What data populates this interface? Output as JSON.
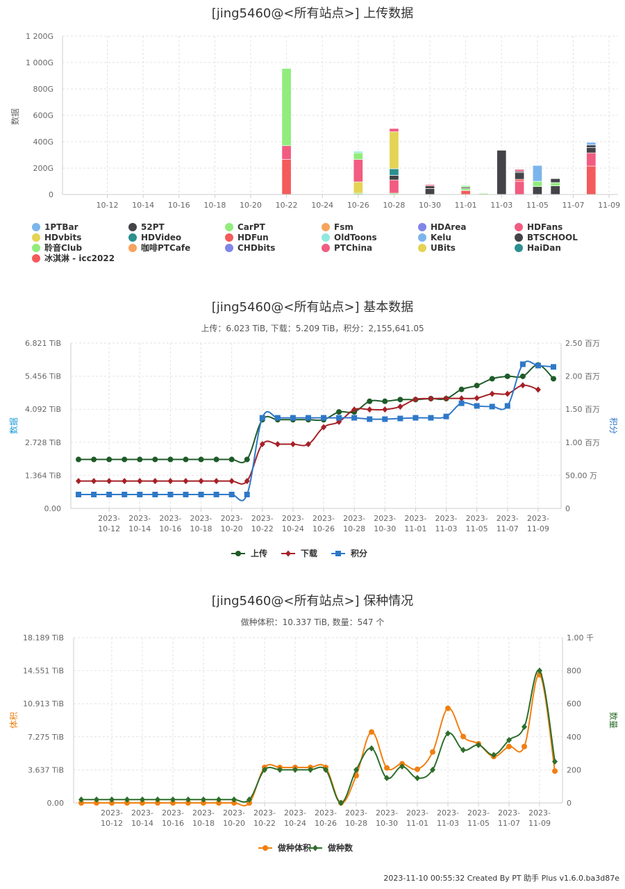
{
  "chart_data": [
    {
      "type": "bar",
      "title": "[jing5460@<所有站点>] 上传数据",
      "ylabel": "数据",
      "ylim": [
        0,
        1200
      ],
      "yticks": [
        "0",
        "200G",
        "400G",
        "600G",
        "800G",
        "1 000G",
        "1 200G"
      ],
      "x_labels": [
        "10-12",
        "10-14",
        "10-16",
        "10-18",
        "10-20",
        "10-22",
        "10-24",
        "10-26",
        "10-28",
        "10-30",
        "11-01",
        "11-03",
        "11-05",
        "11-07",
        "11-09"
      ],
      "stacked": true,
      "legend": [
        {
          "name": "1PTBar",
          "color": "#7cb5ec"
        },
        {
          "name": "52PT",
          "color": "#434348"
        },
        {
          "name": "CarPT",
          "color": "#90ed7d"
        },
        {
          "name": "Fsm",
          "color": "#f7a35c"
        },
        {
          "name": "HDArea",
          "color": "#8085e9"
        },
        {
          "name": "HDFans",
          "color": "#f15c80"
        },
        {
          "name": "HDvbits",
          "color": "#e4d354"
        },
        {
          "name": "HDVideo",
          "color": "#2b908f"
        },
        {
          "name": "HDFun",
          "color": "#f45b5b"
        },
        {
          "name": "OldToons",
          "color": "#91e8e1"
        },
        {
          "name": "Kelu",
          "color": "#7cb5ec"
        },
        {
          "name": "BTSCHOOL",
          "color": "#434348"
        },
        {
          "name": "聆音Club",
          "color": "#90ed7d"
        },
        {
          "name": "咖啡PTCafe",
          "color": "#f7a35c"
        },
        {
          "name": "CHDbits",
          "color": "#8085e9"
        },
        {
          "name": "PTChina",
          "color": "#f15c80"
        },
        {
          "name": "UBits",
          "color": "#e4d354"
        },
        {
          "name": "HaiDan",
          "color": "#2b908f"
        },
        {
          "name": "冰淇淋 - icc2022",
          "color": "#f45b5b"
        }
      ],
      "bars": [
        {
          "date": "10-22",
          "segments": [
            {
              "v": 265,
              "c": "#f45b5b"
            },
            {
              "v": 105,
              "c": "#f15c80"
            },
            {
              "v": 585,
              "c": "#90ed7d"
            }
          ]
        },
        {
          "date": "10-26",
          "segments": [
            {
              "v": 10,
              "c": "#90ed7d"
            },
            {
              "v": 85,
              "c": "#e4d354"
            },
            {
              "v": 170,
              "c": "#f15c80"
            },
            {
              "v": 50,
              "c": "#90ed7d"
            },
            {
              "v": 12,
              "c": "#91e8e1"
            }
          ]
        },
        {
          "date": "10-28",
          "segments": [
            {
              "v": 10,
              "c": "#90ed7d"
            },
            {
              "v": 100,
              "c": "#f15c80"
            },
            {
              "v": 35,
              "c": "#434348"
            },
            {
              "v": 50,
              "c": "#2b908f"
            },
            {
              "v": 280,
              "c": "#e4d354"
            },
            {
              "v": 25,
              "c": "#f15c80"
            }
          ]
        },
        {
          "date": "10-30",
          "segments": [
            {
              "v": 45,
              "c": "#434348"
            },
            {
              "v": 20,
              "c": "#434348"
            },
            {
              "v": 10,
              "c": "#f15c80"
            }
          ]
        },
        {
          "date": "11-01",
          "segments": [
            {
              "v": 30,
              "c": "#f45b5b"
            },
            {
              "v": 15,
              "c": "#90ed7d"
            },
            {
              "v": 10,
              "c": "#434348"
            },
            {
              "v": 12,
              "c": "#90ed7d"
            }
          ]
        },
        {
          "date": "11-02",
          "segments": [
            {
              "v": 8,
              "c": "#90ed7d"
            }
          ]
        },
        {
          "date": "11-03",
          "segments": [
            {
              "v": 335,
              "c": "#434348"
            }
          ]
        },
        {
          "date": "11-04",
          "segments": [
            {
              "v": 100,
              "c": "#f15c80"
            },
            {
              "v": 15,
              "c": "#f45b5b"
            },
            {
              "v": 50,
              "c": "#434348"
            },
            {
              "v": 10,
              "c": "#434348"
            },
            {
              "v": 15,
              "c": "#f15c80"
            }
          ]
        },
        {
          "date": "11-05",
          "segments": [
            {
              "v": 60,
              "c": "#434348"
            },
            {
              "v": 40,
              "c": "#90ed7d"
            },
            {
              "v": 120,
              "c": "#7cb5ec"
            }
          ]
        },
        {
          "date": "11-06",
          "segments": [
            {
              "v": 65,
              "c": "#434348"
            },
            {
              "v": 25,
              "c": "#90ed7d"
            },
            {
              "v": 30,
              "c": "#434348"
            }
          ]
        },
        {
          "date": "11-08",
          "segments": [
            {
              "v": 215,
              "c": "#f45b5b"
            },
            {
              "v": 100,
              "c": "#f15c80"
            },
            {
              "v": 40,
              "c": "#434348"
            },
            {
              "v": 20,
              "c": "#434348"
            },
            {
              "v": 20,
              "c": "#7cb5ec"
            }
          ]
        }
      ]
    },
    {
      "type": "line",
      "title": "[jing5460@<所有站点>] 基本数据",
      "subtitle": "上传：6.023 TiB, 下载：5.209 TiB，积分：2,155,641.05",
      "ylabel_left": "数据",
      "ylabel_right": "积分",
      "y_left_ticks": [
        "0.00",
        "1.364 TiB",
        "2.728 TiB",
        "4.092 TiB",
        "5.456 TiB",
        "6.821 TiB"
      ],
      "y_left_max": 6.821,
      "y_right_ticks": [
        "0",
        "50.00 万",
        "1.00 百万",
        "1.50 百万",
        "2.00 百万",
        "2.50 百万"
      ],
      "y_right_max": 2.5,
      "x_labels": [
        "2023-10-12",
        "2023-10-14",
        "2023-10-16",
        "2023-10-18",
        "2023-10-20",
        "2023-10-22",
        "2023-10-24",
        "2023-10-26",
        "2023-10-28",
        "2023-10-30",
        "2023-11-01",
        "2023-11-03",
        "2023-11-05",
        "2023-11-07",
        "2023-11-09"
      ],
      "series": [
        {
          "name": "上传",
          "color": "#1e5b28",
          "marker": "circle",
          "axis": "left",
          "values": [
            2.02,
            2.02,
            2.02,
            2.02,
            2.02,
            2.02,
            2.02,
            2.02,
            2.02,
            2.02,
            2.02,
            2.02,
            3.66,
            3.66,
            3.66,
            3.66,
            3.66,
            3.98,
            3.98,
            4.42,
            4.42,
            4.49,
            4.49,
            4.53,
            4.53,
            4.91,
            5.07,
            5.35,
            5.45,
            5.45,
            5.92,
            5.35
          ]
        },
        {
          "name": "下载",
          "color": "#a52127",
          "marker": "diamond",
          "axis": "left",
          "values": [
            1.13,
            1.13,
            1.13,
            1.13,
            1.13,
            1.13,
            1.13,
            1.13,
            1.13,
            1.13,
            1.13,
            1.13,
            2.65,
            2.65,
            2.65,
            2.65,
            3.35,
            3.57,
            4.08,
            4.08,
            4.08,
            4.2,
            4.5,
            4.53,
            4.54,
            4.54,
            4.55,
            4.73,
            4.73,
            5.08,
            4.9,
            null
          ]
        },
        {
          "name": "积分",
          "color": "#2e78c8",
          "marker": "square",
          "axis": "right",
          "values": [
            0.21,
            0.21,
            0.21,
            0.21,
            0.21,
            0.21,
            0.21,
            0.21,
            0.21,
            0.21,
            0.21,
            0.21,
            1.37,
            1.37,
            1.37,
            1.37,
            1.37,
            1.37,
            1.37,
            1.35,
            1.35,
            1.36,
            1.37,
            1.37,
            1.39,
            1.59,
            1.55,
            1.54,
            1.55,
            2.18,
            2.16,
            2.14
          ]
        }
      ]
    },
    {
      "type": "line",
      "title": "[jing5460@<所有站点>] 保种情况",
      "subtitle": "做种体积：10.337 TiB, 数量：547 个",
      "ylabel_left": "体积",
      "ylabel_right": "数量",
      "y_left_ticks": [
        "0.00",
        "3.637 TiB",
        "7.275 TiB",
        "10.913 TiB",
        "14.551 TiB",
        "18.189 TiB"
      ],
      "y_left_max": 18.189,
      "y_right_ticks": [
        "0",
        "200",
        "400",
        "600",
        "800",
        "1.00 千"
      ],
      "y_right_max": 1000,
      "x_labels": [
        "2023-10-12",
        "2023-10-14",
        "2023-10-16",
        "2023-10-18",
        "2023-10-20",
        "2023-10-22",
        "2023-10-24",
        "2023-10-26",
        "2023-10-28",
        "2023-10-30",
        "2023-11-01",
        "2023-11-03",
        "2023-11-05",
        "2023-11-07",
        "2023-11-09"
      ],
      "series": [
        {
          "name": "做种体积",
          "color": "#f07f10",
          "marker": "circle",
          "axis": "left",
          "values": [
            0.0,
            0.0,
            0.0,
            0.0,
            0.0,
            0.0,
            0.0,
            0.0,
            0.0,
            0.0,
            0.0,
            0.0,
            3.9,
            3.9,
            3.9,
            3.9,
            3.9,
            0.0,
            3.0,
            7.8,
            3.85,
            4.3,
            3.7,
            5.6,
            10.4,
            7.3,
            6.5,
            5.1,
            6.2,
            6.2,
            14.1,
            3.5
          ]
        },
        {
          "name": "做种数",
          "color": "#2d6e2b",
          "marker": "diamond",
          "axis": "right",
          "values": [
            20,
            20,
            20,
            20,
            20,
            20,
            20,
            20,
            20,
            20,
            20,
            20,
            200,
            200,
            200,
            200,
            200,
            0,
            200,
            330,
            150,
            220,
            150,
            200,
            420,
            320,
            350,
            290,
            380,
            460,
            800,
            250
          ]
        }
      ]
    }
  ],
  "footer": "2023-11-10 00:55:32 Created By PT 助手 Plus v1.6.0.ba3d87e"
}
